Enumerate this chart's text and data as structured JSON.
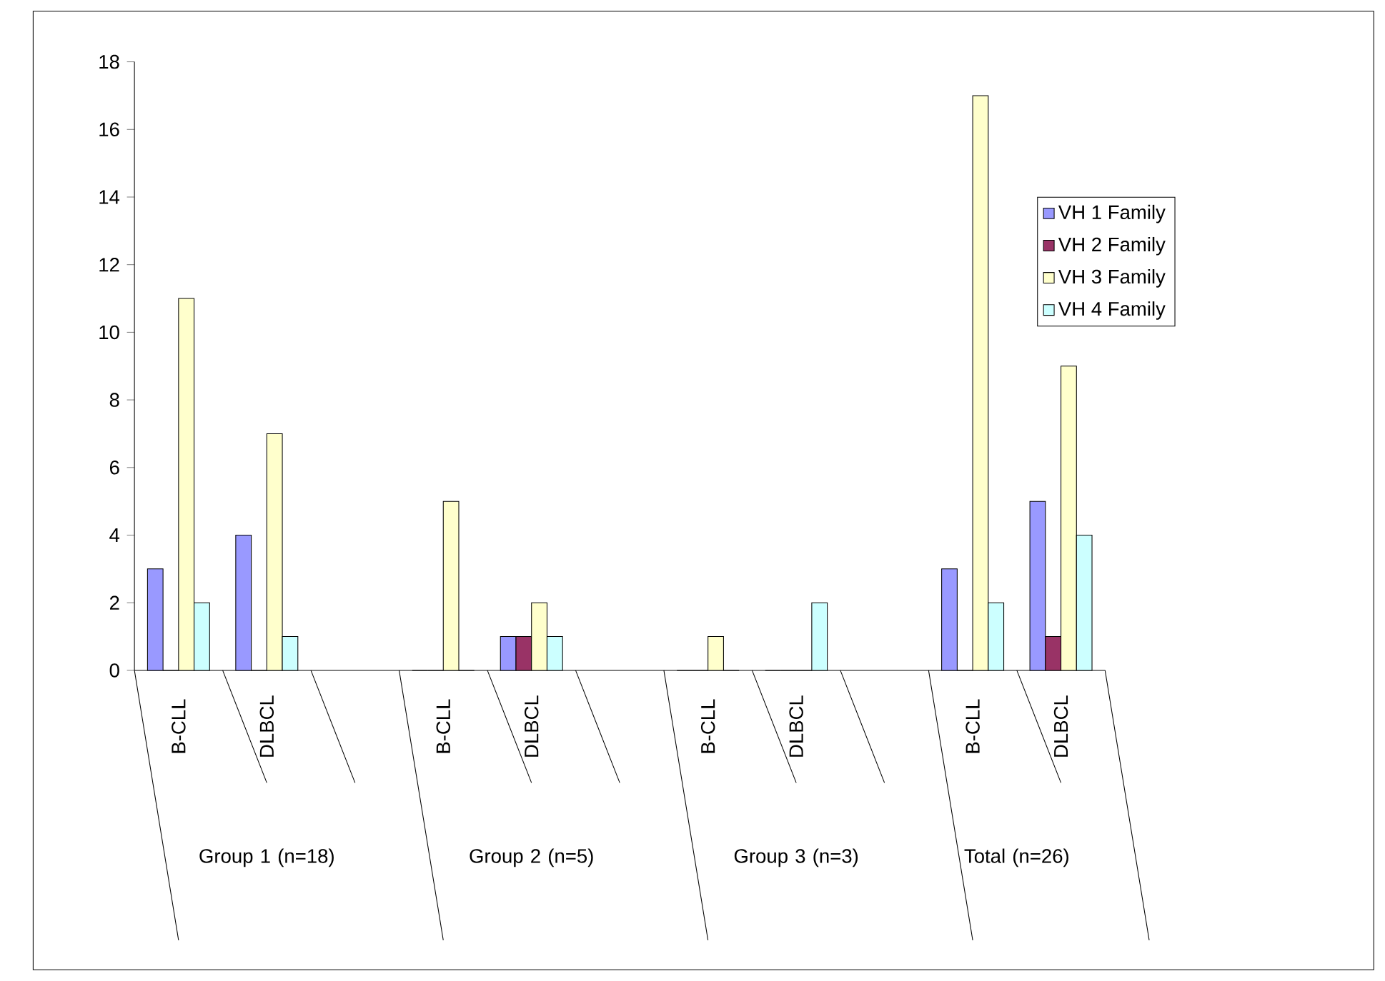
{
  "chart_data": {
    "type": "bar",
    "categories": [
      "B-CLL",
      "DLBCL",
      null,
      "B-CLL",
      "DLBCL",
      null,
      "B-CLL",
      "DLBCL",
      null,
      "B-CLL",
      "DLBCL"
    ],
    "series": [
      {
        "name": "VH 1 Family",
        "color": "#9999ff",
        "values": [
          3,
          4,
          null,
          0,
          1,
          null,
          0,
          0,
          null,
          3,
          5
        ]
      },
      {
        "name": "VH 2 Family",
        "color": "#993366",
        "values": [
          0,
          0,
          null,
          0,
          1,
          null,
          0,
          0,
          null,
          0,
          1
        ]
      },
      {
        "name": "VH 3 Family",
        "color": "#ffffcc",
        "values": [
          11,
          7,
          null,
          5,
          2,
          null,
          1,
          0,
          null,
          17,
          9
        ]
      },
      {
        "name": "VH 4 Family",
        "color": "#ccffff",
        "values": [
          2,
          1,
          null,
          0,
          1,
          null,
          0,
          2,
          null,
          2,
          4
        ]
      }
    ],
    "annotations": [
      "Group 1 (n=18)",
      "Group 2 (n=5)",
      "Group 3 (n=3)",
      "Total (n=26)"
    ],
    "ylim": [
      0,
      18
    ],
    "yticks": [
      0,
      2,
      4,
      6,
      8,
      10,
      12,
      14,
      16,
      18
    ],
    "legend": "right"
  }
}
